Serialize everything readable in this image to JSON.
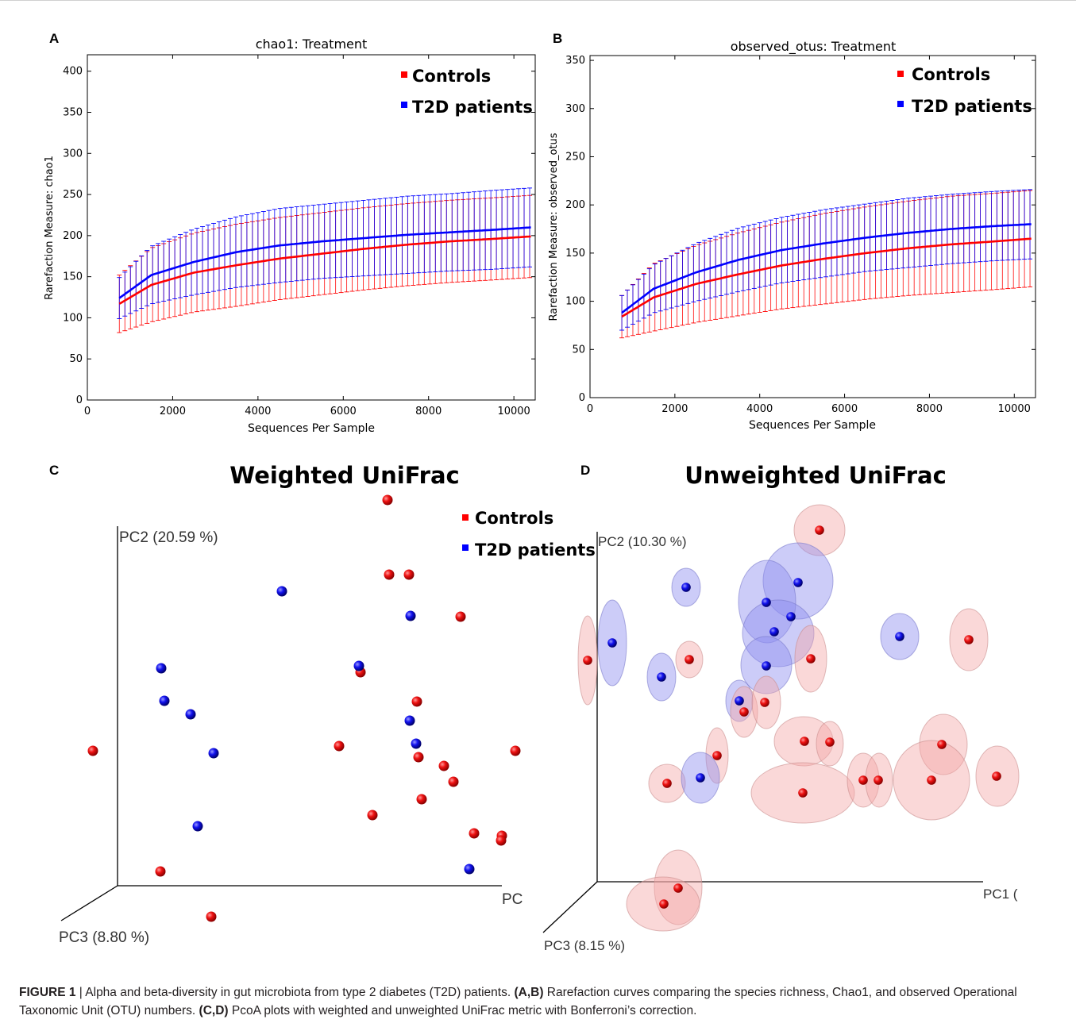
{
  "figure": {
    "caption_label": "FIGURE 1",
    "caption_sep": " | ",
    "caption_text1": "Alpha and beta-diversity in gut microbiota from type 2 diabetes (T2D) patients. ",
    "caption_ref1": "(A,B)",
    "caption_text2": " Rarefaction curves comparing the species richness, Chao1, and observed Operational Taxonomic Unit (OTU) numbers. ",
    "caption_ref2": "(C,D)",
    "caption_text3": " PcoA plots with weighted and unweighted UniFrac metric with Bonferroni’s correction."
  },
  "chart_data": [
    {
      "panel": "A",
      "type": "line",
      "title": "chao1: Treatment",
      "xlabel": "Sequences Per Sample",
      "ylabel": "Rarefaction Measure: chao1",
      "xlim": [
        0,
        10500
      ],
      "ylim": [
        0,
        420
      ],
      "xticks": [
        "0",
        "2000",
        "4000",
        "6000",
        "8000",
        "10000"
      ],
      "yticks": [
        "0",
        "50",
        "100",
        "150",
        "200",
        "250",
        "300",
        "350",
        "400"
      ],
      "legend_position": "top-right",
      "series": [
        {
          "name": "Controls",
          "color": "#ff0000",
          "x": [
            750,
            1500,
            2500,
            3500,
            4500,
            5500,
            6500,
            7500,
            8500,
            9500,
            10400
          ],
          "y": [
            117,
            140,
            155,
            164,
            172,
            178,
            184,
            189,
            193,
            196,
            199
          ],
          "err": [
            35,
            45,
            48,
            50,
            50,
            50,
            50,
            50,
            50,
            50,
            50
          ]
        },
        {
          "name": "T2D patients",
          "color": "#0000ff",
          "x": [
            750,
            1500,
            2500,
            3500,
            4500,
            5500,
            6500,
            7500,
            8500,
            9500,
            10400
          ],
          "y": [
            124,
            152,
            168,
            180,
            188,
            193,
            197,
            201,
            204,
            207,
            210
          ],
          "err": [
            25,
            35,
            40,
            43,
            45,
            45,
            46,
            47,
            47,
            48,
            48
          ]
        }
      ],
      "grid": false
    },
    {
      "panel": "B",
      "type": "line",
      "title": "observed_otus: Treatment",
      "xlabel": "Sequences Per Sample",
      "ylabel": "Rarefaction Measure: observed_otus",
      "xlim": [
        0,
        10500
      ],
      "ylim": [
        0,
        355
      ],
      "xticks": [
        "0",
        "2000",
        "4000",
        "6000",
        "8000",
        "10000"
      ],
      "yticks": [
        "0",
        "50",
        "100",
        "150",
        "200",
        "250",
        "300",
        "350"
      ],
      "legend_position": "top-right",
      "series": [
        {
          "name": "Controls",
          "color": "#ff0000",
          "x": [
            750,
            1500,
            2500,
            3500,
            4500,
            5500,
            6500,
            7500,
            8500,
            9500,
            10400
          ],
          "y": [
            84,
            104,
            118,
            128,
            137,
            144,
            150,
            155,
            159,
            162,
            165
          ],
          "err": [
            22,
            35,
            40,
            43,
            45,
            47,
            48,
            49,
            50,
            50,
            50
          ]
        },
        {
          "name": "T2D patients",
          "color": "#0000ff",
          "x": [
            750,
            1500,
            2500,
            3500,
            4500,
            5500,
            6500,
            7500,
            8500,
            9500,
            10400
          ],
          "y": [
            88,
            113,
            130,
            143,
            153,
            160,
            166,
            171,
            175,
            178,
            180
          ],
          "err": [
            18,
            25,
            30,
            33,
            34,
            35,
            35,
            36,
            36,
            36,
            36
          ]
        }
      ],
      "grid": false
    },
    {
      "panel": "C",
      "type": "scatter",
      "title": "Weighted UniFrac",
      "axis_labels": [
        "PC2 (20.59 %)",
        "PC3 (8.80 %)",
        "PC"
      ],
      "legend": [
        {
          "name": "Controls",
          "color": "#ff0000"
        },
        {
          "name": "T2D patients",
          "color": "#0000ff"
        }
      ],
      "points": [
        {
          "g": "c",
          "x": 488,
          "y": 630
        },
        {
          "g": "c",
          "x": 490,
          "y": 724
        },
        {
          "g": "c",
          "x": 515,
          "y": 724
        },
        {
          "g": "c",
          "x": 580,
          "y": 777
        },
        {
          "g": "c",
          "x": 454,
          "y": 847
        },
        {
          "g": "c",
          "x": 525,
          "y": 884
        },
        {
          "g": "c",
          "x": 117,
          "y": 946
        },
        {
          "g": "c",
          "x": 427,
          "y": 940
        },
        {
          "g": "c",
          "x": 527,
          "y": 954
        },
        {
          "g": "c",
          "x": 559,
          "y": 965
        },
        {
          "g": "c",
          "x": 571,
          "y": 985
        },
        {
          "g": "c",
          "x": 649,
          "y": 946
        },
        {
          "g": "c",
          "x": 531,
          "y": 1007
        },
        {
          "g": "c",
          "x": 469,
          "y": 1027
        },
        {
          "g": "c",
          "x": 597,
          "y": 1050
        },
        {
          "g": "c",
          "x": 632,
          "y": 1053
        },
        {
          "g": "c",
          "x": 631,
          "y": 1059
        },
        {
          "g": "c",
          "x": 202,
          "y": 1098
        },
        {
          "g": "c",
          "x": 266,
          "y": 1155
        },
        {
          "g": "t",
          "x": 355,
          "y": 745
        },
        {
          "g": "t",
          "x": 517,
          "y": 776
        },
        {
          "g": "t",
          "x": 452,
          "y": 839
        },
        {
          "g": "t",
          "x": 203,
          "y": 842
        },
        {
          "g": "t",
          "x": 207,
          "y": 883
        },
        {
          "g": "t",
          "x": 240,
          "y": 900
        },
        {
          "g": "t",
          "x": 516,
          "y": 908
        },
        {
          "g": "t",
          "x": 524,
          "y": 937
        },
        {
          "g": "t",
          "x": 269,
          "y": 949
        },
        {
          "g": "t",
          "x": 249,
          "y": 1041
        },
        {
          "g": "t",
          "x": 591,
          "y": 1095
        }
      ]
    },
    {
      "panel": "D",
      "type": "scatter",
      "title": "Unweighted UniFrac",
      "axis_labels": [
        "PC2 (10.30 %)",
        "PC3 (8.15 %)",
        "PC1 ("
      ],
      "points": [
        {
          "g": "c",
          "x": 1032,
          "y": 668
        },
        {
          "g": "c",
          "x": 740,
          "y": 832
        },
        {
          "g": "c",
          "x": 868,
          "y": 831
        },
        {
          "g": "c",
          "x": 1021,
          "y": 830
        },
        {
          "g": "c",
          "x": 1220,
          "y": 806
        },
        {
          "g": "c",
          "x": 963,
          "y": 885
        },
        {
          "g": "c",
          "x": 937,
          "y": 897
        },
        {
          "g": "c",
          "x": 1013,
          "y": 934
        },
        {
          "g": "c",
          "x": 1045,
          "y": 935
        },
        {
          "g": "c",
          "x": 903,
          "y": 952
        },
        {
          "g": "c",
          "x": 1186,
          "y": 938
        },
        {
          "g": "c",
          "x": 840,
          "y": 987
        },
        {
          "g": "c",
          "x": 1011,
          "y": 999
        },
        {
          "g": "c",
          "x": 1087,
          "y": 983
        },
        {
          "g": "c",
          "x": 1106,
          "y": 983
        },
        {
          "g": "c",
          "x": 1173,
          "y": 983
        },
        {
          "g": "c",
          "x": 1255,
          "y": 978
        },
        {
          "g": "c",
          "x": 854,
          "y": 1119
        },
        {
          "g": "c",
          "x": 836,
          "y": 1139
        },
        {
          "g": "t",
          "x": 864,
          "y": 740
        },
        {
          "g": "t",
          "x": 1005,
          "y": 734
        },
        {
          "g": "t",
          "x": 965,
          "y": 759
        },
        {
          "g": "t",
          "x": 996,
          "y": 777
        },
        {
          "g": "t",
          "x": 975,
          "y": 796
        },
        {
          "g": "t",
          "x": 771,
          "y": 810
        },
        {
          "g": "t",
          "x": 1133,
          "y": 802
        },
        {
          "g": "t",
          "x": 965,
          "y": 839
        },
        {
          "g": "t",
          "x": 833,
          "y": 853
        },
        {
          "g": "t",
          "x": 931,
          "y": 883
        },
        {
          "g": "t",
          "x": 882,
          "y": 980
        }
      ]
    }
  ],
  "panels": {
    "a": {
      "letter": "A"
    },
    "b": {
      "letter": "B"
    },
    "c": {
      "letter": "C"
    },
    "d": {
      "letter": "D"
    }
  }
}
